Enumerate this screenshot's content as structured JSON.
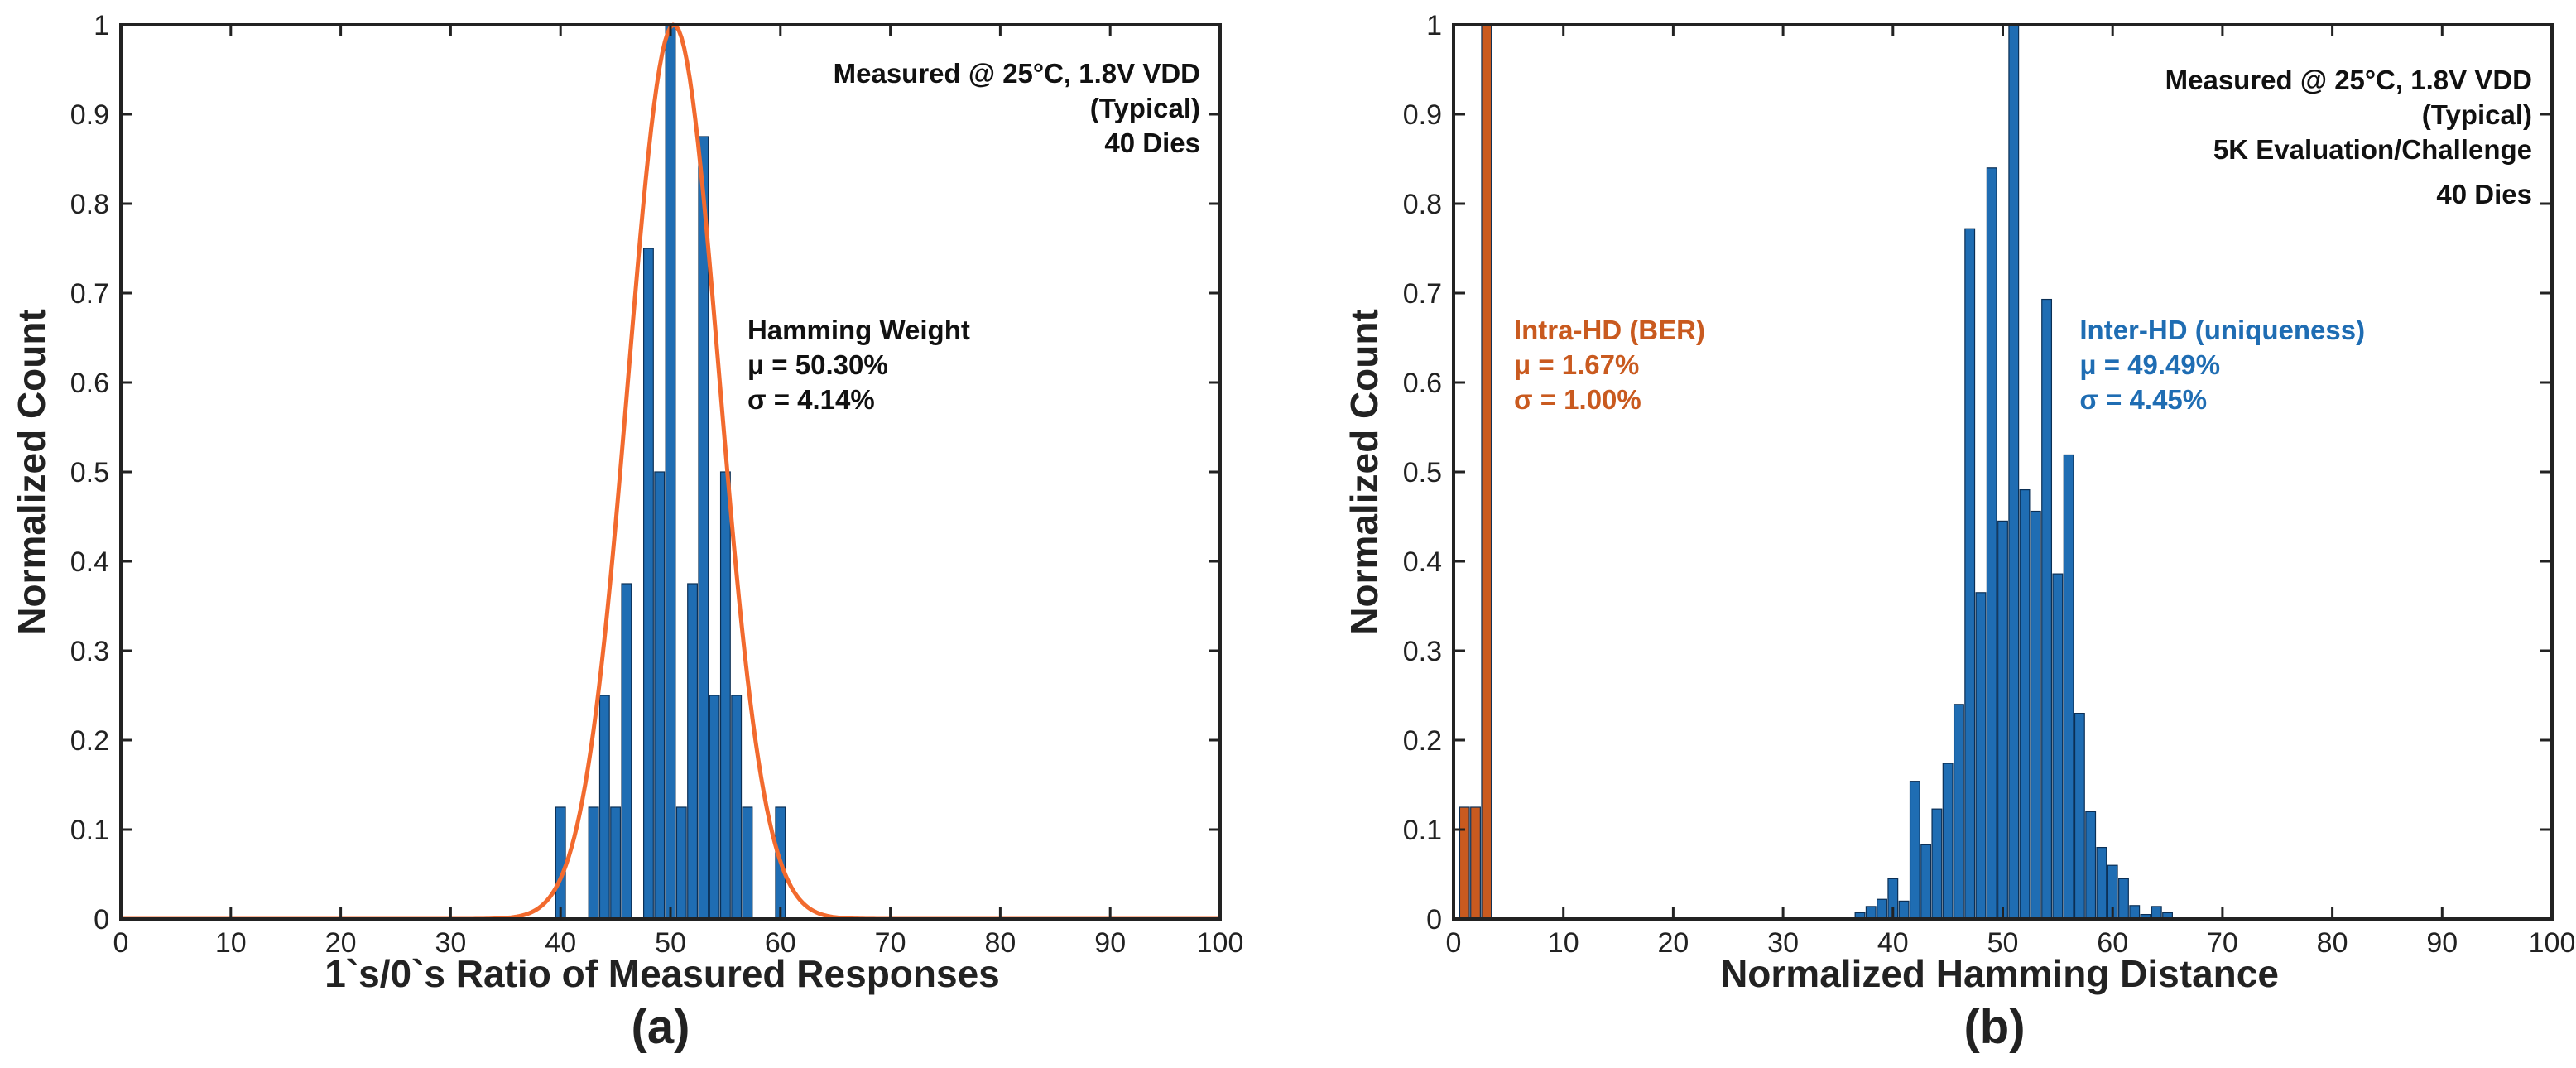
{
  "chart_data": [
    {
      "type": "bar",
      "panel_label": "(a)",
      "xlabel": "1`s/0`s Ratio of Measured Responses",
      "ylabel": "Normalized Count",
      "xlim": [
        0,
        100
      ],
      "ylim": [
        0,
        1
      ],
      "xticks": [
        "0",
        "10",
        "20",
        "30",
        "40",
        "50",
        "60",
        "70",
        "80",
        "90",
        "100"
      ],
      "yticks": [
        "0",
        "0.1",
        "0.2",
        "0.3",
        "0.4",
        "0.5",
        "0.6",
        "0.7",
        "0.8",
        "0.9",
        "1"
      ],
      "bar_color": "#1f6db3",
      "fit_color": "#f26a2e",
      "series": [
        {
          "name": "Hamming Weight",
          "color": "#1f6db3",
          "x": [
            40,
            43,
            44,
            45,
            46,
            48,
            49,
            50,
            51,
            52,
            53,
            54,
            55,
            56,
            57,
            60
          ],
          "values": [
            0.125,
            0.125,
            0.25,
            0.125,
            0.375,
            0.75,
            0.5,
            1.0,
            0.125,
            0.375,
            0.875,
            0.25,
            0.5,
            0.25,
            0.125,
            0.125
          ]
        }
      ],
      "fit": {
        "type": "gaussian",
        "mean": 50.3,
        "sigma": 4.14,
        "peak": 1.0,
        "color": "#f26a2e"
      },
      "annotations": {
        "conditions": [
          "Measured @ 25°C, 1.8V VDD",
          "(Typical)",
          "40 Dies"
        ],
        "stats_title": "Hamming Weight",
        "stats_mu": "μ = 50.30%",
        "stats_sigma": "σ =  4.14%"
      }
    },
    {
      "type": "bar",
      "panel_label": "(b)",
      "xlabel": "Normalized Hamming Distance",
      "ylabel": "Normalized Count",
      "xlim": [
        0,
        100
      ],
      "ylim": [
        0,
        1
      ],
      "xticks": [
        "0",
        "10",
        "20",
        "30",
        "40",
        "50",
        "60",
        "70",
        "80",
        "90",
        "100"
      ],
      "yticks": [
        "0",
        "0.1",
        "0.2",
        "0.3",
        "0.4",
        "0.5",
        "0.6",
        "0.7",
        "0.8",
        "0.9",
        "1"
      ],
      "series": [
        {
          "name": "Intra-HD (BER)",
          "color": "#c95a1f",
          "x": [
            1,
            2,
            3
          ],
          "values": [
            0.125,
            0.125,
            1.0
          ]
        },
        {
          "name": "Inter-HD (uniqueness)",
          "color": "#1f6db3",
          "x": [
            37,
            38,
            39,
            40,
            41,
            42,
            43,
            44,
            45,
            46,
            47,
            48,
            49,
            50,
            51,
            52,
            53,
            54,
            55,
            56,
            57,
            58,
            59,
            60,
            61,
            62,
            63,
            64,
            65
          ],
          "values": [
            0.007,
            0.014,
            0.022,
            0.045,
            0.02,
            0.154,
            0.083,
            0.123,
            0.174,
            0.24,
            0.772,
            0.365,
            0.84,
            0.445,
            1.0,
            0.48,
            0.456,
            0.693,
            0.386,
            0.519,
            0.23,
            0.12,
            0.08,
            0.06,
            0.045,
            0.015,
            0.005,
            0.014,
            0.007
          ]
        }
      ],
      "annotations": {
        "conditions": [
          "Measured @ 25°C, 1.8V VDD",
          "(Typical)",
          "5K Evaluation/Challenge",
          "40 Dies"
        ],
        "intra_title": "Intra-HD (BER)",
        "intra_mu": "μ = 1.67%",
        "intra_sigma": "σ = 1.00%",
        "inter_title": "Inter-HD (uniqueness)",
        "inter_mu": "μ = 49.49%",
        "inter_sigma": "σ =  4.45%"
      }
    }
  ]
}
